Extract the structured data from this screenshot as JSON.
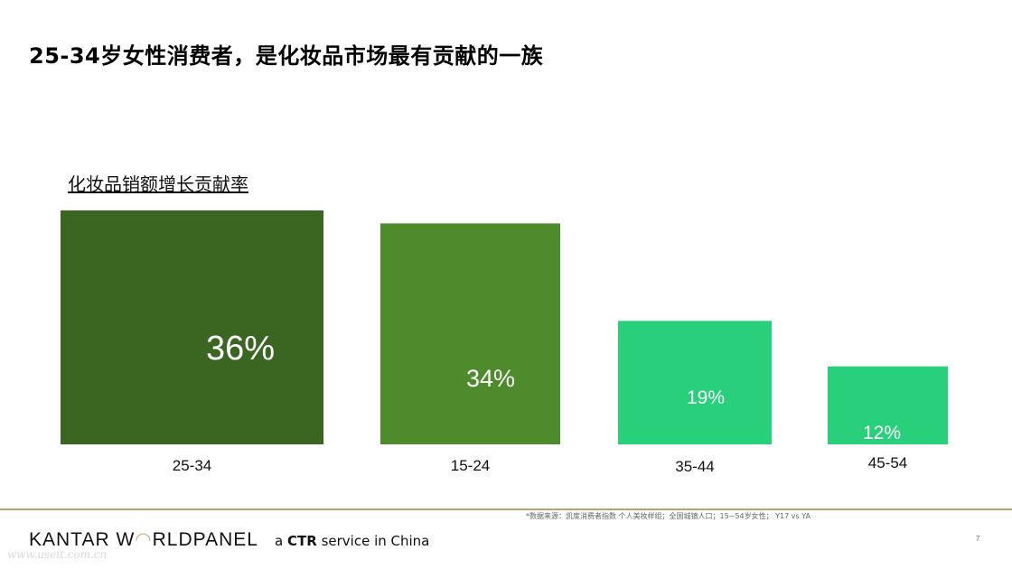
{
  "slide": {
    "title": "25-34岁女性消费者，是化妆品市场最有贡献的一族",
    "page_number": "7",
    "footnote": "*数据来源：凯度消费者指数 个人美妆样组；全国城镇人口；15~54岁女性； Y17 vs YA",
    "watermark": "www.useit.com.cn"
  },
  "logo": {
    "kantar": "KANTAR",
    "worldpanel_pre": "W",
    "worldpanel_o": "◠",
    "worldpanel_post": "RLDPANEL",
    "tagline_a": "a",
    "tagline_ctr": "CTR",
    "tagline_rest": "service in China"
  },
  "chart_data": {
    "type": "bar",
    "title": "化妆品销额增长贡献率",
    "categories": [
      "25-34",
      "15-24",
      "35-44",
      "45-54"
    ],
    "values": [
      36,
      34,
      19,
      12
    ],
    "value_labels": [
      "36%",
      "34%",
      "19%",
      "12%"
    ],
    "colors": [
      "#3a6622",
      "#4d8b2c",
      "#28d07c",
      "#28d07c"
    ],
    "ylim": [
      0,
      36
    ],
    "grid": false,
    "legend": "none"
  }
}
